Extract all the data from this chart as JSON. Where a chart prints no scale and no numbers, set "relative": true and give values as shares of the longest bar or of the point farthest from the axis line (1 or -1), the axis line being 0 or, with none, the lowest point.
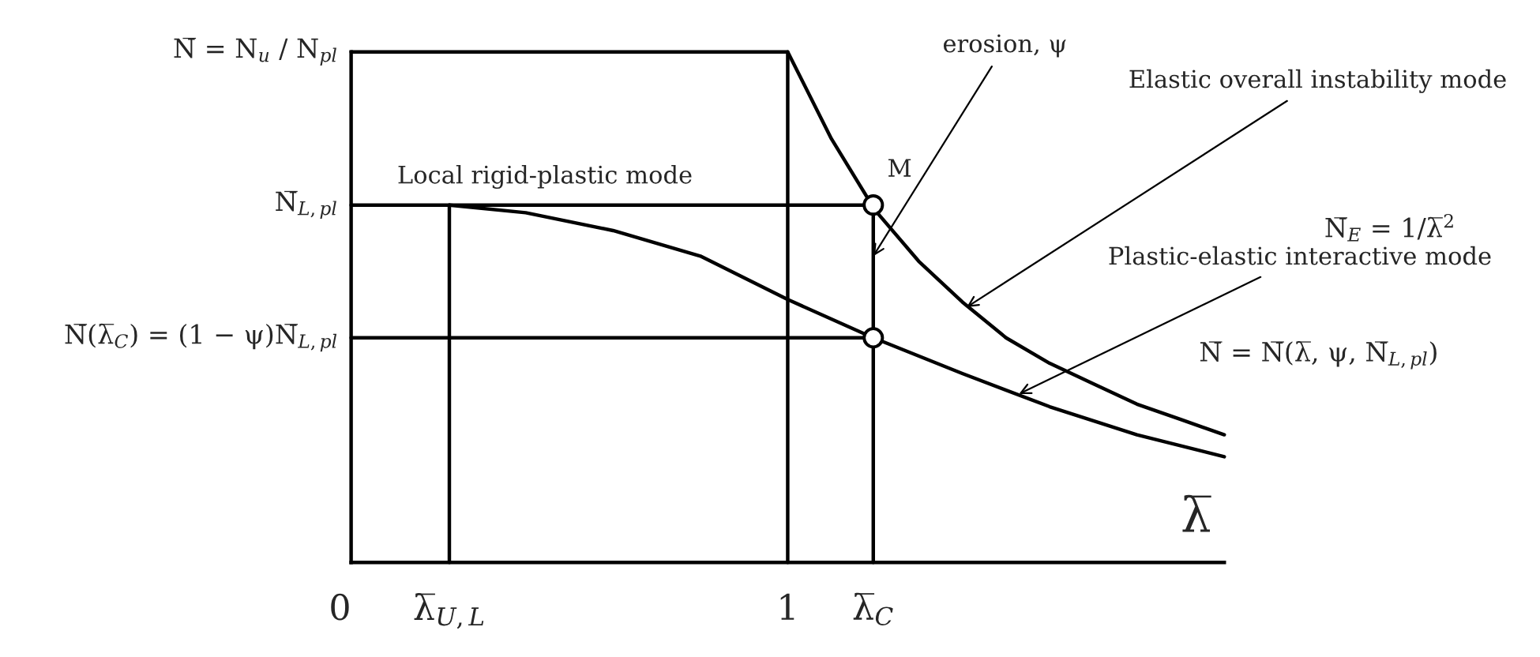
{
  "chart_data": {
    "type": "line",
    "relative": true,
    "xlabel": "λ̅",
    "xlim": [
      0,
      2.0
    ],
    "xticks": [
      0,
      {
        "value": 0.225,
        "label": "λ̅$_{U,L}$"
      },
      1,
      {
        "value": 1.196,
        "label": "λ̅$_{C}$"
      }
    ],
    "grid": false,
    "legend": false,
    "marker": "none",
    "line_style": "solid",
    "series": [
      {
        "color": "#000000",
        "x": [
          0,
          1,
          1.1,
          1.2,
          1.3,
          1.4,
          1.5,
          1.6,
          1.7,
          1.8,
          1.9,
          2.0
        ],
        "values": [
          1,
          1,
          0.83,
          0.69,
          0.59,
          0.51,
          0.44,
          0.39,
          0.35,
          0.31,
          0.28,
          0.25
        ]
      },
      {
        "color": "#000000",
        "x": [
          0,
          0.225,
          0.4,
          0.6,
          0.8,
          1.0,
          1.196,
          1.4,
          1.6,
          1.8,
          2.0
        ],
        "values": [
          0.7,
          0.7,
          0.685,
          0.65,
          0.6,
          0.515,
          0.44,
          0.37,
          0.305,
          0.25,
          0.207
        ]
      },
      {
        "color": "#000000",
        "x": [
          1,
          1
        ],
        "values": [
          0,
          1
        ]
      },
      {
        "color": "#000000",
        "x": [
          0.225,
          0.225
        ],
        "values": [
          0,
          0.7
        ]
      },
      {
        "color": "#000000",
        "x": [
          0.225,
          1.196,
          1.196
        ],
        "values": [
          0.7,
          0.7,
          0
        ]
      },
      {
        "color": "#000000",
        "x": [
          0,
          1.196
        ],
        "values": [
          0.44,
          0.44
        ]
      },
      {
        "type": "scatter",
        "marker": "circle",
        "color": "#000000",
        "x": [
          1.196,
          1.196
        ],
        "values": [
          0.7,
          0.44
        ]
      }
    ],
    "annotations": [
      {
        "text": "N̅ = N$_{u}$ / N$_{pl}$",
        "x": 0,
        "y": 1
      },
      {
        "text": "N̅$_{L,pl}$",
        "x": 0,
        "y": 0.7
      },
      {
        "text": "N̅(λ̅$_{C}$) = (1 − ψ)N̅$_{L,pl}$",
        "x": 0,
        "y": 0.44
      },
      "Local rigid-plastic mode",
      {
        "text": "M",
        "x": 1.196,
        "y": 0.7
      },
      {
        "text": "erosion, ψ",
        "x": 1.196,
        "y": 0.6
      },
      {
        "text": "Elastic overall instability mode",
        "x": 1.41,
        "y": 0.5
      },
      "N̅$_{E}$ = 1/λ̅$^{2}$",
      {
        "text": "Plastic-elastic interactive mode",
        "x": 1.53,
        "y": 0.33
      },
      "N̅ = N̅(λ̅, ψ, N̅$_{L,pl}$)"
    ]
  }
}
